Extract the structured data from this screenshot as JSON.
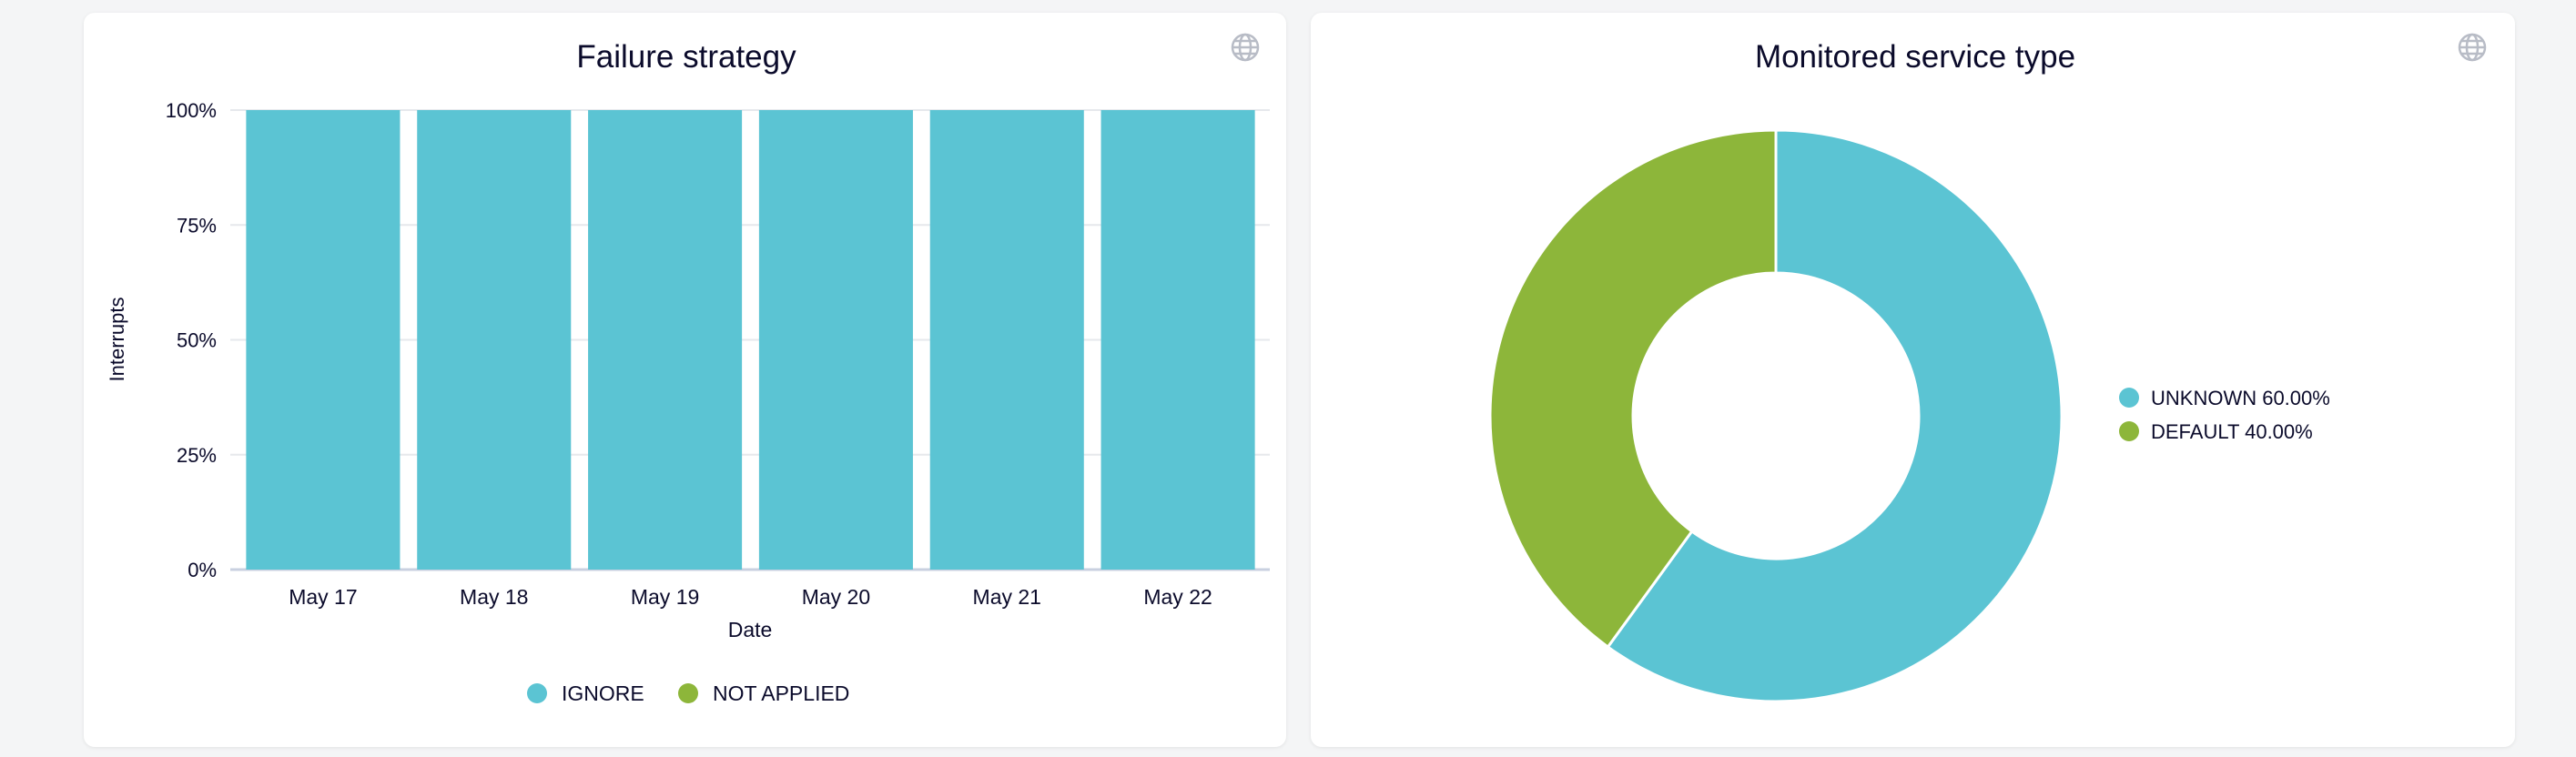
{
  "chart_data": [
    {
      "type": "bar",
      "stacked": true,
      "title": "Failure strategy",
      "xlabel": "Date",
      "ylabel": "Interrupts",
      "categories": [
        "May 17",
        "May 18",
        "May 19",
        "May 20",
        "May 21",
        "May 22"
      ],
      "yticks": [
        "0%",
        "25%",
        "50%",
        "75%",
        "100%"
      ],
      "ylim": [
        0,
        100
      ],
      "grid": true,
      "legend_position": "bottom",
      "series": [
        {
          "name": "IGNORE",
          "color": "#5bc4d3",
          "values": [
            100,
            100,
            100,
            100,
            100,
            100
          ]
        },
        {
          "name": "NOT APPLIED",
          "color": "#8db63a",
          "values": [
            0,
            0,
            0,
            0,
            0,
            0
          ]
        }
      ],
      "icon": "globe-icon"
    },
    {
      "type": "pie",
      "donut": true,
      "title": "Monitored service type",
      "legend_position": "right",
      "slices": [
        {
          "name": "UNKNOWN",
          "value": 60.0,
          "label": "UNKNOWN 60.00%",
          "color": "#5bc4d3"
        },
        {
          "name": "DEFAULT",
          "value": 40.0,
          "label": "DEFAULT 40.00%",
          "color": "#8db63a"
        }
      ],
      "icon": "globe-icon"
    }
  ]
}
